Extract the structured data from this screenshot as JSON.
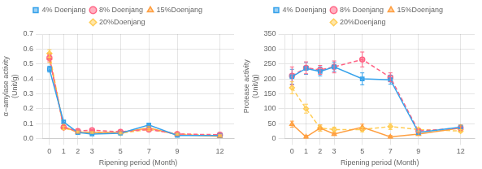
{
  "chart_data": [
    {
      "type": "line",
      "xlabel": "Ripening period (Month)",
      "ylabel": "α−amylase activity\n(Unit/g)",
      "x": [
        0,
        1,
        2,
        3,
        5,
        7,
        9,
        12
      ],
      "xlim": [
        -0.5,
        13
      ],
      "xticks": [
        0,
        1,
        2,
        3,
        5,
        7,
        9,
        12
      ],
      "ylim": [
        0,
        0.7
      ],
      "yticks": [
        {
          "value": 0,
          "label": "0.0"
        },
        0.1,
        0.2,
        0.3,
        0.4,
        0.5,
        0.6,
        0.7
      ],
      "legend": "top",
      "series": [
        {
          "name": "4% Doenjang",
          "marker": "square",
          "line_style": "solid",
          "values": [
            0.465,
            0.11,
            0.04,
            0.03,
            0.035,
            0.09,
            0.02,
            0.02
          ],
          "errors": [
            0.02,
            0.01,
            0.005,
            0.005,
            0.005,
            0.01,
            0.005,
            0.005
          ]
        },
        {
          "name": "8% Doenjang",
          "marker": "circle",
          "line_style": "dashed",
          "values": [
            0.54,
            0.075,
            0.05,
            0.055,
            0.045,
            0.06,
            0.03,
            0.025
          ],
          "errors": [
            0.02,
            0.01,
            0.005,
            0.005,
            0.005,
            0.008,
            0.01,
            0.005
          ]
        },
        {
          "name": "15%Doenjang",
          "marker": "triangle",
          "line_style": "solid",
          "values": [
            0.54,
            0.08,
            0.04,
            0.04,
            0.04,
            0.07,
            0.025,
            0.015
          ],
          "errors": [
            0.03,
            0.015,
            0.005,
            0.005,
            0.005,
            0.012,
            0.005,
            0.005
          ]
        },
        {
          "name": "20%Doenjang",
          "marker": "diamond",
          "line_style": "dashed",
          "values": [
            0.57,
            0.07,
            0.045,
            0.04,
            0.035,
            0.06,
            0.03,
            0.02
          ],
          "errors": [
            0.025,
            0.01,
            0.005,
            0.005,
            0.005,
            0.008,
            0.005,
            0.005
          ]
        }
      ]
    },
    {
      "type": "line",
      "xlabel": "Ripening period (Month)",
      "ylabel": "Protease activity\n(Unit/g)",
      "x": [
        0,
        1,
        2,
        3,
        5,
        7,
        9,
        12
      ],
      "xlim": [
        -0.5,
        13
      ],
      "xticks": [
        0,
        1,
        2,
        3,
        5,
        7,
        9,
        12
      ],
      "ylim": [
        0,
        350
      ],
      "yticks": [
        0,
        50,
        100,
        150,
        200,
        250,
        300,
        350
      ],
      "legend": "top",
      "series": [
        {
          "name": "4% Doenjang",
          "marker": "square",
          "line_style": "solid",
          "values": [
            207,
            235,
            225,
            240,
            200,
            197,
            20,
            38
          ],
          "errors": [
            25,
            20,
            15,
            15,
            20,
            15,
            5,
            5
          ]
        },
        {
          "name": "8% Doenjang",
          "marker": "circle",
          "line_style": "dashed",
          "values": [
            210,
            237,
            230,
            240,
            265,
            205,
            25,
            35
          ],
          "errors": [
            30,
            20,
            15,
            20,
            25,
            15,
            5,
            5
          ]
        },
        {
          "name": "15%Doenjang",
          "marker": "triangle",
          "line_style": "solid",
          "values": [
            48,
            5,
            35,
            15,
            38,
            5,
            15,
            35
          ],
          "errors": [
            10,
            5,
            10,
            5,
            10,
            5,
            5,
            10
          ]
        },
        {
          "name": "20%Doenjang",
          "marker": "diamond",
          "line_style": "dashed",
          "values": [
            170,
            100,
            35,
            30,
            30,
            40,
            30,
            25
          ],
          "errors": [
            20,
            15,
            10,
            8,
            8,
            10,
            5,
            5
          ]
        }
      ]
    }
  ]
}
